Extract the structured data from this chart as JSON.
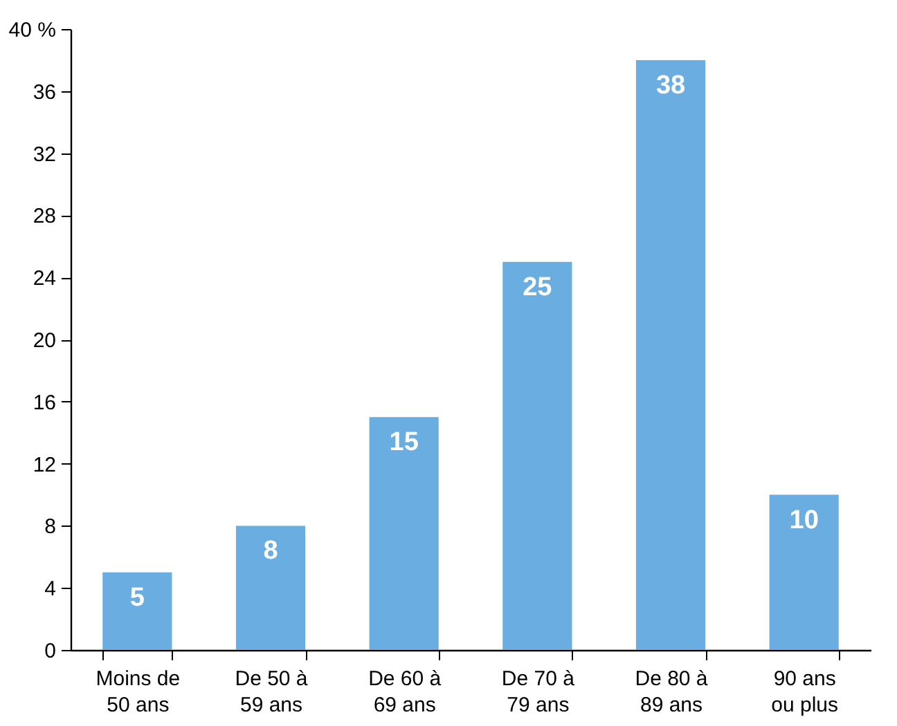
{
  "chart_data": {
    "type": "bar",
    "categories": [
      "Moins de 50 ans",
      "De 50 à 59 ans",
      "De 60 à 69 ans",
      "De 70 à 79 ans",
      "De 80 à 89 ans",
      "90 ans ou plus"
    ],
    "values": [
      5,
      8,
      15,
      25,
      38,
      10
    ],
    "color": "#6aade0",
    "ylim": [
      0,
      40
    ],
    "yticks": [
      0,
      4,
      8,
      12,
      16,
      20,
      24,
      28,
      32,
      36,
      {
        "value": 40,
        "label": "40 %"
      }
    ],
    "grid": false,
    "data_labels": true
  }
}
